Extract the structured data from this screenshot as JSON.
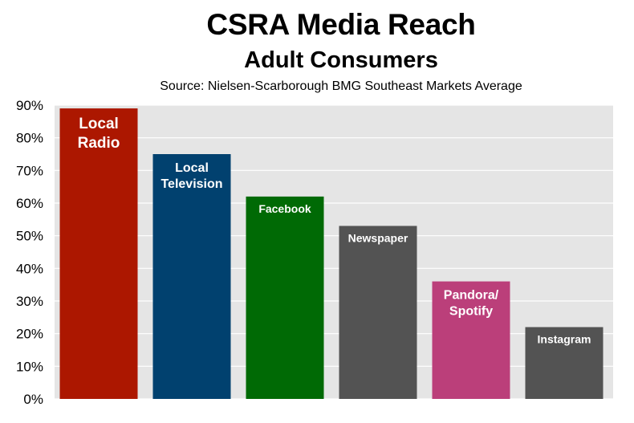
{
  "chart_data": {
    "type": "bar",
    "title": "CSRA Media Reach",
    "subtitle": "Adult Consumers",
    "source": "Source: Nielsen-Scarborough BMG Southeast Markets Average",
    "ylim": [
      0,
      90
    ],
    "y_ticks": [
      "0%",
      "10%",
      "20%",
      "30%",
      "40%",
      "50%",
      "60%",
      "70%",
      "80%",
      "90%"
    ],
    "grid": true,
    "categories": [
      {
        "lines": [
          "Local",
          "Radio"
        ],
        "value": 89,
        "color": "#ac1700"
      },
      {
        "lines": [
          "Local",
          "Television"
        ],
        "value": 75,
        "color": "#01416f"
      },
      {
        "lines": [
          "Facebook"
        ],
        "value": 62,
        "color": "#006a05"
      },
      {
        "lines": [
          "Newspaper"
        ],
        "value": 53,
        "color": "#535353"
      },
      {
        "lines": [
          "Pandora/",
          "Spotify"
        ],
        "value": 36,
        "color": "#bb3f7a"
      },
      {
        "lines": [
          "Instagram"
        ],
        "value": 22,
        "color": "#535353"
      }
    ],
    "plot_background": "#e5e5e5",
    "grid_color": "#ffffff"
  }
}
